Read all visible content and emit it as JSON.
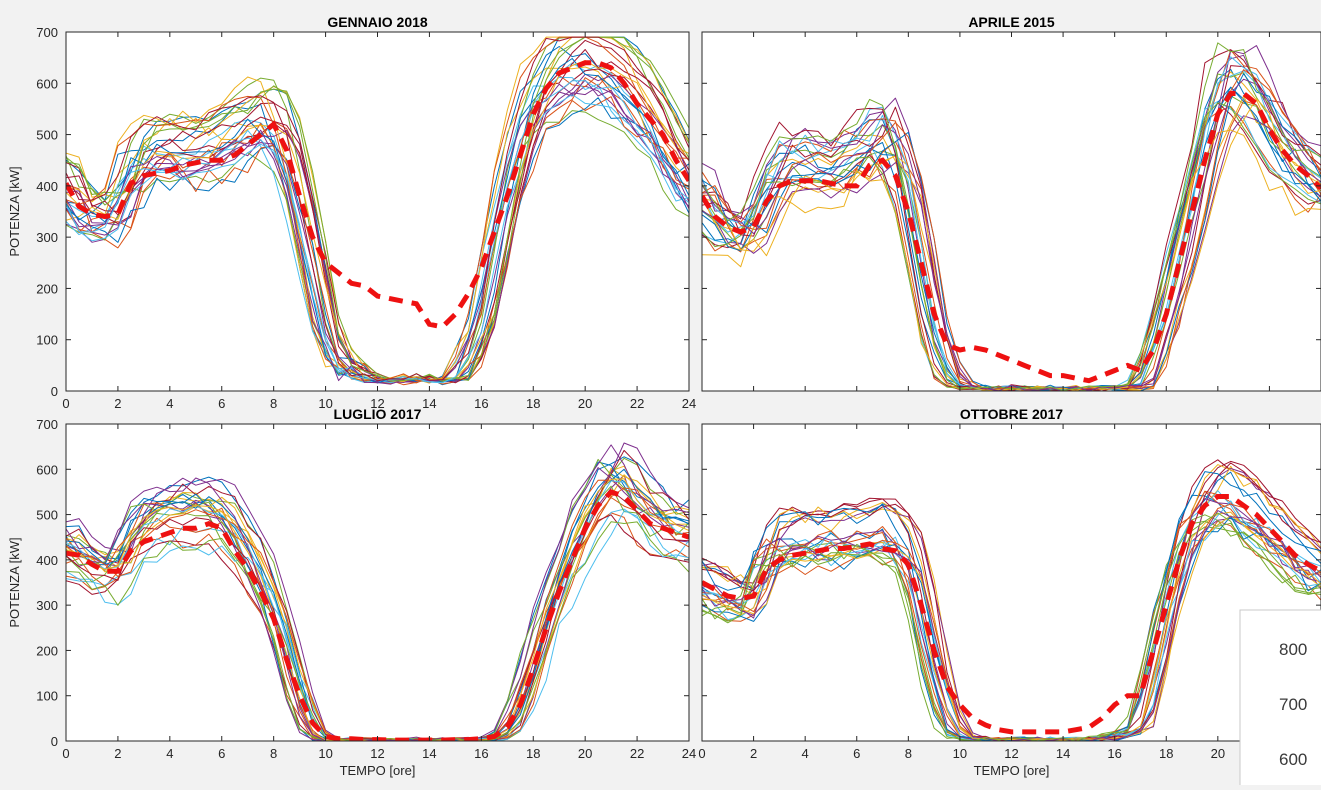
{
  "chart_data": [
    {
      "type": "line",
      "title": "GENNAIO 2018",
      "xlabel": "",
      "ylabel": "POTENZA [kW]",
      "xlim": [
        0,
        24
      ],
      "ylim": [
        0,
        700
      ],
      "x_ticks": [
        "0",
        "2",
        "4",
        "6",
        "8",
        "10",
        "12",
        "14",
        "16",
        "18",
        "20",
        "22",
        "24"
      ],
      "y_ticks": [
        "0",
        "100",
        "200",
        "300",
        "400",
        "500",
        "600",
        "700"
      ],
      "mean_profile": {
        "x": [
          0,
          0.5,
          1,
          1.5,
          2,
          2.5,
          3,
          3.5,
          4,
          4.5,
          5,
          5.5,
          6,
          6.5,
          7,
          7.5,
          8,
          8.5,
          9,
          9.5,
          10,
          10.5,
          11,
          11.5,
          12,
          12.5,
          13,
          13.5,
          14,
          14.5,
          15,
          15.5,
          16,
          16.5,
          17,
          17.5,
          18,
          18.5,
          19,
          19.5,
          20,
          20.5,
          21,
          21.5,
          22,
          22.5,
          23,
          23.5,
          24
        ],
        "y": [
          405,
          360,
          345,
          340,
          345,
          405,
          420,
          425,
          430,
          440,
          445,
          450,
          450,
          460,
          480,
          500,
          520,
          470,
          380,
          300,
          250,
          230,
          210,
          205,
          185,
          180,
          175,
          170,
          130,
          125,
          150,
          190,
          240,
          310,
          380,
          460,
          540,
          590,
          620,
          630,
          640,
          640,
          630,
          600,
          560,
          530,
          500,
          450,
          410
        ]
      },
      "daily_profiles": {
        "count": 28,
        "base_x": [
          0,
          0.5,
          1,
          1.5,
          2,
          2.5,
          3,
          3.5,
          4,
          4.5,
          5,
          5.5,
          6,
          6.5,
          7,
          7.5,
          8,
          8.5,
          9,
          9.5,
          10,
          10.5,
          11,
          11.5,
          12,
          12.5,
          13,
          13.5,
          14,
          14.5,
          15,
          15.5,
          16,
          16.5,
          17,
          17.5,
          18,
          18.5,
          19,
          19.5,
          20,
          20.5,
          21,
          21.5,
          22,
          22.5,
          23,
          23.5,
          24
        ],
        "base_y": [
          410,
          350,
          340,
          340,
          350,
          430,
          460,
          470,
          470,
          470,
          470,
          480,
          490,
          500,
          520,
          530,
          530,
          480,
          380,
          260,
          120,
          60,
          40,
          30,
          20,
          20,
          20,
          30,
          20,
          20,
          20,
          60,
          120,
          250,
          380,
          480,
          560,
          600,
          620,
          640,
          640,
          640,
          630,
          600,
          570,
          540,
          500,
          450,
          410
        ]
      }
    },
    {
      "type": "line",
      "title": "APRILE 2015",
      "xlabel": "",
      "ylabel": "",
      "xlim": [
        0,
        24
      ],
      "ylim": [
        0,
        700
      ],
      "x_ticks": [],
      "y_ticks": [],
      "mean_profile": {
        "x": [
          0,
          0.5,
          1,
          1.5,
          2,
          2.5,
          3,
          3.5,
          4,
          4.5,
          5,
          5.5,
          6,
          6.5,
          7,
          7.5,
          8,
          8.5,
          9,
          9.5,
          10,
          10.5,
          11,
          11.5,
          12,
          12.5,
          13,
          13.5,
          14,
          14.5,
          15,
          15.5,
          16,
          16.5,
          17,
          17.5,
          18,
          18.5,
          19,
          19.5,
          20,
          20.5,
          21,
          21.5,
          22,
          22.5,
          23,
          23.5,
          24
        ],
        "y": [
          380,
          340,
          320,
          310,
          320,
          370,
          400,
          410,
          410,
          410,
          405,
          400,
          400,
          440,
          450,
          420,
          350,
          250,
          150,
          90,
          80,
          85,
          80,
          70,
          60,
          50,
          40,
          30,
          30,
          25,
          20,
          30,
          40,
          50,
          40,
          80,
          150,
          250,
          350,
          450,
          540,
          580,
          580,
          560,
          510,
          470,
          440,
          420,
          395
        ]
      },
      "daily_profiles": {
        "count": 26,
        "base_x": [
          0,
          0.5,
          1,
          1.5,
          2,
          2.5,
          3,
          3.5,
          4,
          4.5,
          5,
          5.5,
          6,
          6.5,
          7,
          7.5,
          8,
          8.5,
          9,
          9.5,
          10,
          10.5,
          11,
          11.5,
          12,
          12.5,
          13,
          13.5,
          14,
          14.5,
          15,
          15.5,
          16,
          16.5,
          17,
          17.5,
          18,
          18.5,
          19,
          19.5,
          20,
          20.5,
          21,
          21.5,
          22,
          22.5,
          23,
          23.5,
          24
        ],
        "base_y": [
          380,
          330,
          310,
          300,
          310,
          380,
          430,
          440,
          440,
          430,
          430,
          440,
          450,
          480,
          500,
          470,
          400,
          260,
          120,
          40,
          10,
          5,
          5,
          5,
          5,
          5,
          5,
          5,
          5,
          5,
          5,
          5,
          5,
          5,
          10,
          60,
          150,
          250,
          350,
          460,
          560,
          600,
          590,
          560,
          510,
          470,
          440,
          420,
          395
        ]
      }
    },
    {
      "type": "line",
      "title": "LUGLIO 2017",
      "xlabel": "TEMPO [ore]",
      "ylabel": "POTENZA [kW]",
      "xlim": [
        0,
        24
      ],
      "ylim": [
        0,
        700
      ],
      "x_ticks": [
        "0",
        "2",
        "4",
        "6",
        "8",
        "10",
        "12",
        "14",
        "16",
        "18",
        "20",
        "22",
        "24"
      ],
      "y_ticks": [
        "0",
        "100",
        "200",
        "300",
        "400",
        "500",
        "600",
        "700"
      ],
      "mean_profile": {
        "x": [
          0,
          0.5,
          1,
          1.5,
          2,
          2.5,
          3,
          3.5,
          4,
          4.5,
          5,
          5.5,
          6,
          6.5,
          7,
          7.5,
          8,
          8.5,
          9,
          9.5,
          10,
          10.5,
          11,
          11.5,
          12,
          12.5,
          13,
          13.5,
          14,
          14.5,
          15,
          15.5,
          16,
          16.5,
          17,
          17.5,
          18,
          18.5,
          19,
          19.5,
          20,
          20.5,
          21,
          21.5,
          22,
          22.5,
          23,
          23.5,
          24
        ],
        "y": [
          415,
          410,
          390,
          375,
          375,
          420,
          440,
          450,
          460,
          470,
          470,
          480,
          470,
          420,
          380,
          330,
          270,
          180,
          100,
          40,
          10,
          5,
          5,
          3,
          3,
          2,
          2,
          2,
          2,
          2,
          3,
          3,
          5,
          10,
          30,
          80,
          160,
          250,
          330,
          400,
          470,
          520,
          550,
          540,
          510,
          480,
          470,
          460,
          450
        ]
      },
      "daily_profiles": {
        "count": 26,
        "base_x": [
          0,
          0.5,
          1,
          1.5,
          2,
          2.5,
          3,
          3.5,
          4,
          4.5,
          5,
          5.5,
          6,
          6.5,
          7,
          7.5,
          8,
          8.5,
          9,
          9.5,
          10,
          10.5,
          11,
          11.5,
          12,
          12.5,
          13,
          13.5,
          14,
          14.5,
          15,
          15.5,
          16,
          16.5,
          17,
          17.5,
          18,
          18.5,
          19,
          19.5,
          20,
          20.5,
          21,
          21.5,
          22,
          22.5,
          23,
          23.5,
          24
        ],
        "base_y": [
          420,
          400,
          380,
          370,
          370,
          440,
          480,
          490,
          500,
          500,
          500,
          500,
          490,
          450,
          410,
          360,
          290,
          190,
          90,
          20,
          3,
          2,
          2,
          2,
          2,
          2,
          2,
          2,
          2,
          2,
          2,
          2,
          2,
          5,
          20,
          80,
          170,
          270,
          350,
          420,
          480,
          530,
          570,
          560,
          520,
          490,
          470,
          460,
          450
        ]
      }
    },
    {
      "type": "line",
      "title": "OTTOBRE 2017",
      "xlabel": "TEMPO [ore]",
      "ylabel": "",
      "xlim": [
        0,
        24
      ],
      "ylim": [
        0,
        700
      ],
      "x_ticks": [
        "0",
        "2",
        "4",
        "6",
        "8",
        "10",
        "12",
        "14",
        "16",
        "18",
        "20"
      ],
      "y_ticks": [],
      "mean_profile": {
        "x": [
          0,
          0.5,
          1,
          1.5,
          2,
          2.5,
          3,
          3.5,
          4,
          4.5,
          5,
          5.5,
          6,
          6.5,
          7,
          7.5,
          8,
          8.5,
          9,
          9.5,
          10,
          10.5,
          11,
          11.5,
          12,
          12.5,
          13,
          13.5,
          14,
          14.5,
          15,
          15.5,
          16,
          16.5,
          17,
          17.5,
          18,
          18.5,
          19,
          19.5,
          20,
          20.5,
          21,
          21.5,
          22,
          22.5,
          23,
          23.5,
          24
        ],
        "y": [
          350,
          335,
          320,
          315,
          320,
          380,
          400,
          410,
          415,
          420,
          425,
          425,
          430,
          435,
          425,
          420,
          390,
          300,
          200,
          120,
          80,
          50,
          35,
          25,
          20,
          20,
          20,
          20,
          20,
          25,
          30,
          50,
          80,
          100,
          100,
          200,
          300,
          400,
          480,
          520,
          540,
          540,
          520,
          500,
          470,
          440,
          410,
          390,
          375
        ]
      },
      "daily_profiles": {
        "count": 26,
        "base_x": [
          0,
          0.5,
          1,
          1.5,
          2,
          2.5,
          3,
          3.5,
          4,
          4.5,
          5,
          5.5,
          6,
          6.5,
          7,
          7.5,
          8,
          8.5,
          9,
          9.5,
          10,
          10.5,
          11,
          11.5,
          12,
          12.5,
          13,
          13.5,
          14,
          14.5,
          15,
          15.5,
          16,
          16.5,
          17,
          17.5,
          18,
          18.5,
          19,
          19.5,
          20,
          20.5,
          21,
          21.5,
          22,
          22.5,
          23,
          23.5,
          24
        ],
        "base_y": [
          360,
          335,
          320,
          310,
          320,
          420,
          450,
          450,
          450,
          450,
          455,
          460,
          460,
          470,
          470,
          460,
          420,
          310,
          170,
          60,
          10,
          5,
          3,
          3,
          3,
          3,
          3,
          3,
          3,
          3,
          3,
          5,
          10,
          20,
          30,
          150,
          290,
          400,
          490,
          530,
          550,
          540,
          520,
          500,
          470,
          440,
          410,
          390,
          375
        ]
      }
    }
  ],
  "series_colors": [
    "#0072bd",
    "#d95319",
    "#edb120",
    "#7e2f8e",
    "#77ac30",
    "#4dbeee",
    "#a2142f"
  ],
  "mean_color": "#ee1111",
  "inset": {
    "labels": [
      "800",
      "700",
      "600"
    ]
  }
}
